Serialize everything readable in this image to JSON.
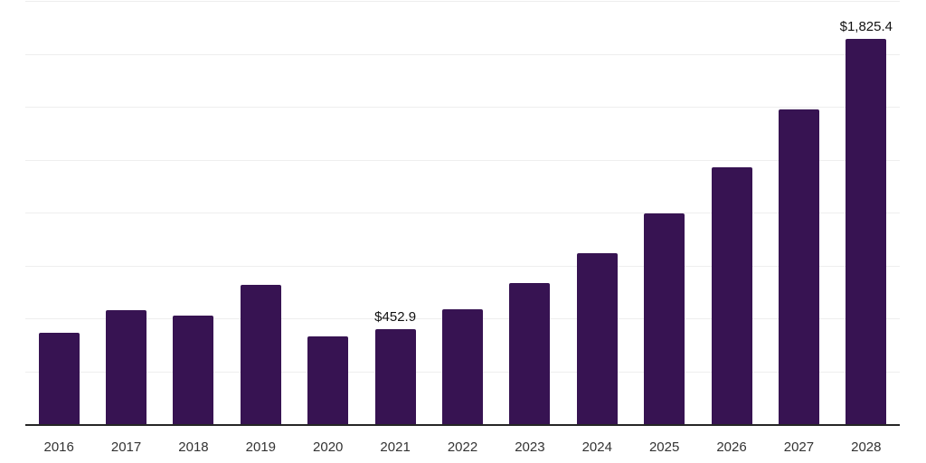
{
  "chart_data": {
    "type": "bar",
    "categories": [
      "2016",
      "2017",
      "2018",
      "2019",
      "2020",
      "2021",
      "2022",
      "2023",
      "2024",
      "2025",
      "2026",
      "2027",
      "2028"
    ],
    "values": [
      435,
      541,
      516,
      664,
      419,
      452.9,
      546,
      672,
      813,
      1000,
      1220,
      1493,
      1825.4
    ],
    "data_labels": {
      "2021": "$452.9",
      "2028": "$1,825.4"
    },
    "ylim": [
      0,
      2000
    ],
    "gridline_step": 250,
    "grid": "horizontal-only",
    "legend": "none",
    "y_axis_labels": "hidden",
    "colors": {
      "bar": "#371352",
      "gridline": "#eeeeee",
      "axis_line": "#262626",
      "tick_label": "#333333",
      "data_label": "#111111",
      "background": "#ffffff"
    }
  }
}
